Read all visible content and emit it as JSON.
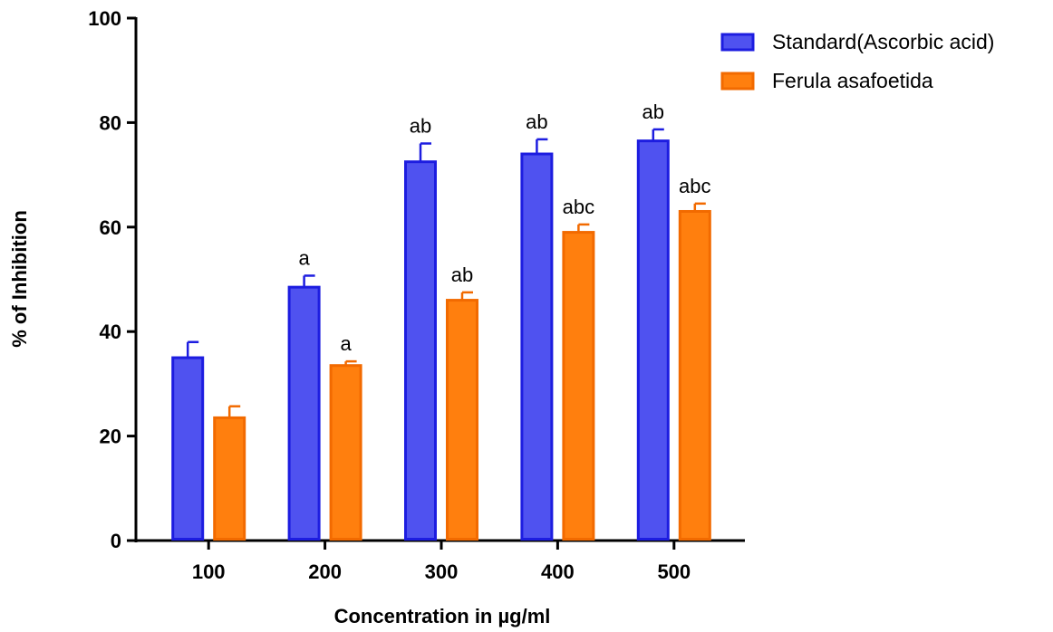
{
  "chart_data": {
    "type": "bar",
    "categories": [
      "100",
      "200",
      "300",
      "400",
      "500"
    ],
    "xlabel": "Concentration in µg/ml",
    "ylabel": "% of Inhibition",
    "ylim": [
      0,
      100
    ],
    "yticks": [
      "0",
      "20",
      "40",
      "60",
      "80",
      "100"
    ],
    "grid": false,
    "legend_position": "top-right",
    "series": [
      {
        "name": "Standard(Ascorbic acid)",
        "color": "#4f52f0",
        "edge_color": "#1d1de0",
        "values": [
          35,
          48.5,
          72.5,
          74,
          76.5
        ],
        "errors": [
          3,
          2.2,
          3.5,
          2.8,
          2.2
        ],
        "annotations": [
          "",
          "a",
          "ab",
          "ab",
          "ab"
        ]
      },
      {
        "name": "Ferula asafoetida",
        "color": "#ff7f0e",
        "edge_color": "#f26a00",
        "values": [
          23.5,
          33.5,
          46,
          59,
          63
        ],
        "errors": [
          2.2,
          0.8,
          1.5,
          1.5,
          1.5
        ],
        "annotations": [
          "",
          "a",
          "ab",
          "abc",
          "abc"
        ]
      }
    ]
  }
}
